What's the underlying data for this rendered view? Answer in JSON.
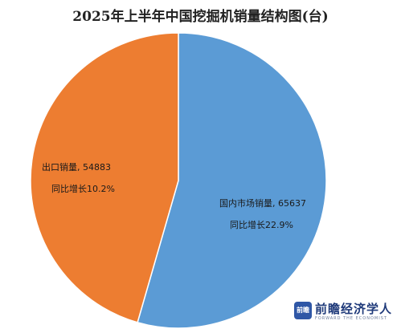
{
  "chart_data": {
    "type": "pie",
    "title": "2025年上半年中国挖掘机销量结构图(台)",
    "slices": [
      {
        "name": "国内市场销量",
        "value": 65637,
        "growth_label": "同比增长22.9%",
        "color": "#5b9bd5"
      },
      {
        "name": "出口销量",
        "value": 54883,
        "growth_label": "同比增长10.2%",
        "color": "#ed7d31"
      }
    ],
    "data_labels": {
      "domestic": "国内市场销量, 65637",
      "domestic_growth": "同比增长22.9%",
      "export": "出口销量, 54883",
      "export_growth": "同比增长10.2%"
    },
    "legend": "none"
  },
  "brand": {
    "logo_text": "前瞻",
    "name": "前瞻经济学人",
    "subtitle": "FORWARD THE ECONOMIST"
  }
}
